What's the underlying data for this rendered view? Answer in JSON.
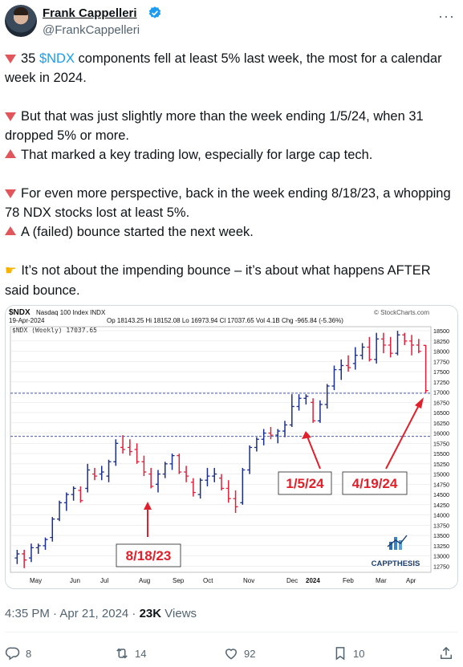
{
  "author": {
    "name": "Frank Cappelleri",
    "handle": "@FrankCappelleri",
    "more_label": "···"
  },
  "tweet": {
    "p1_prefix": "35 ",
    "p1_cashtag": "$NDX",
    "p1_suffix": " components fell at least 5% last week, the most for a calendar week in 2024.",
    "p2": "But that was just slightly more than the week ending 1/5/24, when 31 dropped 5% or more.",
    "p3": "That marked a key trading low, especially for large cap tech.",
    "p4": "For even more perspective, back in the week ending 8/18/23, a whopping 78 NDX stocks lost at least 5%.",
    "p5": "A (failed) bounce started the next week.",
    "p6": "It’s not about the impending bounce – it’s about what happens AFTER said bounce."
  },
  "chart_header": {
    "symbol": "$NDX",
    "desc": "Nasdaq 100 Index  INDX",
    "source": "© StockCharts.com",
    "date": "19-Apr-2024",
    "ohlc": "Op 18143.25  Hi 18152.08  Lo 16973.94  Cl 17037.65  Vol 4.1B  Chg -965.84 (-5.36%)",
    "legend": "$NDX (Weekly) 17037.65",
    "watermark": "CAPPTHESIS",
    "annotations": [
      "8/18/23",
      "1/5/24",
      "4/19/24"
    ]
  },
  "chart_data": {
    "type": "ohlc",
    "y_ticks": [
      12750,
      13000,
      13250,
      13500,
      13750,
      14000,
      14250,
      14500,
      14750,
      15000,
      15250,
      15500,
      15750,
      16000,
      16250,
      16500,
      16750,
      17000,
      17250,
      17500,
      17750,
      18000,
      18250,
      18500
    ],
    "x_labels": [
      "May",
      "Jun",
      "Jul",
      "Aug",
      "Sep",
      "Oct",
      "Nov",
      "Dec",
      "2024",
      "Feb",
      "Mar",
      "Apr"
    ],
    "ylim": [
      12600,
      18600
    ],
    "reference_lines": [
      16973,
      15920
    ],
    "bars": [
      {
        "o": 12950,
        "h": 13150,
        "l": 12800,
        "c": 13050
      },
      {
        "o": 13050,
        "h": 13150,
        "l": 12700,
        "c": 12900
      },
      {
        "o": 12950,
        "h": 13300,
        "l": 12850,
        "c": 13200
      },
      {
        "o": 13200,
        "h": 13300,
        "l": 13050,
        "c": 13250
      },
      {
        "o": 13250,
        "h": 13450,
        "l": 13150,
        "c": 13400
      },
      {
        "o": 13450,
        "h": 13950,
        "l": 13350,
        "c": 13900
      },
      {
        "o": 13900,
        "h": 14350,
        "l": 13850,
        "c": 14300
      },
      {
        "o": 14300,
        "h": 14550,
        "l": 14100,
        "c": 14500
      },
      {
        "o": 14500,
        "h": 14700,
        "l": 14350,
        "c": 14650
      },
      {
        "o": 14600,
        "h": 14700,
        "l": 14300,
        "c": 14350
      },
      {
        "o": 14650,
        "h": 15250,
        "l": 14550,
        "c": 15100
      },
      {
        "o": 15000,
        "h": 15150,
        "l": 14850,
        "c": 14950
      },
      {
        "o": 15000,
        "h": 15200,
        "l": 14850,
        "c": 15050
      },
      {
        "o": 14950,
        "h": 15350,
        "l": 14800,
        "c": 15300
      },
      {
        "o": 15300,
        "h": 15850,
        "l": 15200,
        "c": 15750
      },
      {
        "o": 15650,
        "h": 15950,
        "l": 15500,
        "c": 15600
      },
      {
        "o": 15650,
        "h": 15850,
        "l": 15450,
        "c": 15550
      },
      {
        "o": 15600,
        "h": 15750,
        "l": 15250,
        "c": 15300
      },
      {
        "o": 15300,
        "h": 15450,
        "l": 14950,
        "c": 15050
      },
      {
        "o": 15000,
        "h": 15150,
        "l": 14650,
        "c": 14700
      },
      {
        "o": 14750,
        "h": 15100,
        "l": 14550,
        "c": 15000
      },
      {
        "o": 15000,
        "h": 15300,
        "l": 14900,
        "c": 15250
      },
      {
        "o": 15250,
        "h": 15500,
        "l": 15100,
        "c": 15450
      },
      {
        "o": 15450,
        "h": 15500,
        "l": 15000,
        "c": 15050
      },
      {
        "o": 15050,
        "h": 15200,
        "l": 14800,
        "c": 14950
      },
      {
        "o": 14800,
        "h": 14900,
        "l": 14450,
        "c": 14550
      },
      {
        "o": 14500,
        "h": 14900,
        "l": 14400,
        "c": 14850
      },
      {
        "o": 14850,
        "h": 15150,
        "l": 14700,
        "c": 14950
      },
      {
        "o": 14950,
        "h": 15150,
        "l": 14800,
        "c": 15000
      },
      {
        "o": 14900,
        "h": 15000,
        "l": 14600,
        "c": 14650
      },
      {
        "o": 14650,
        "h": 14850,
        "l": 14300,
        "c": 14400
      },
      {
        "o": 14400,
        "h": 14600,
        "l": 14050,
        "c": 14200
      },
      {
        "o": 14300,
        "h": 15150,
        "l": 14250,
        "c": 15100
      },
      {
        "o": 15100,
        "h": 15700,
        "l": 15000,
        "c": 15650
      },
      {
        "o": 15650,
        "h": 15900,
        "l": 15550,
        "c": 15850
      },
      {
        "o": 15850,
        "h": 16100,
        "l": 15700,
        "c": 16000
      },
      {
        "o": 16000,
        "h": 16150,
        "l": 15850,
        "c": 15950
      },
      {
        "o": 15950,
        "h": 16100,
        "l": 15750,
        "c": 16050
      },
      {
        "o": 16050,
        "h": 16300,
        "l": 15900,
        "c": 16200
      },
      {
        "o": 16200,
        "h": 16950,
        "l": 16150,
        "c": 16650
      },
      {
        "o": 16650,
        "h": 16950,
        "l": 16550,
        "c": 16850
      },
      {
        "o": 16850,
        "h": 16950,
        "l": 16700,
        "c": 16900
      },
      {
        "o": 16750,
        "h": 16850,
        "l": 16250,
        "c": 16300
      },
      {
        "o": 16300,
        "h": 16800,
        "l": 16250,
        "c": 16700
      },
      {
        "o": 16700,
        "h": 17200,
        "l": 16600,
        "c": 17150
      },
      {
        "o": 17150,
        "h": 17650,
        "l": 17050,
        "c": 17550
      },
      {
        "o": 17550,
        "h": 17800,
        "l": 17300,
        "c": 17650
      },
      {
        "o": 17650,
        "h": 17900,
        "l": 17500,
        "c": 17600
      },
      {
        "o": 17700,
        "h": 18100,
        "l": 17550,
        "c": 17900
      },
      {
        "o": 17900,
        "h": 18200,
        "l": 17800,
        "c": 18100
      },
      {
        "o": 18100,
        "h": 18350,
        "l": 17750,
        "c": 17800
      },
      {
        "o": 17800,
        "h": 18450,
        "l": 17700,
        "c": 18300
      },
      {
        "o": 18300,
        "h": 18450,
        "l": 17950,
        "c": 18150
      },
      {
        "o": 18150,
        "h": 18350,
        "l": 17850,
        "c": 17950
      },
      {
        "o": 17950,
        "h": 18500,
        "l": 17900,
        "c": 18400
      },
      {
        "o": 18400,
        "h": 18450,
        "l": 18150,
        "c": 18250
      },
      {
        "o": 18250,
        "h": 18400,
        "l": 17900,
        "c": 18150
      },
      {
        "o": 18150,
        "h": 18300,
        "l": 17950,
        "c": 18000
      },
      {
        "o": 18143,
        "h": 18152,
        "l": 16974,
        "c": 17038
      }
    ]
  },
  "meta": {
    "time": "4:35 PM · Apr 21, 2024 · ",
    "views_count": "23K",
    "views_label": " Views"
  },
  "actions": {
    "replies": "8",
    "reposts": "14",
    "likes": "92",
    "bookmarks": "10"
  },
  "colors": {
    "accent": "#1d9bf0",
    "up_bar": "#1a2e8c",
    "down_bar": "#e0203a",
    "annotation": "#e0202a"
  }
}
